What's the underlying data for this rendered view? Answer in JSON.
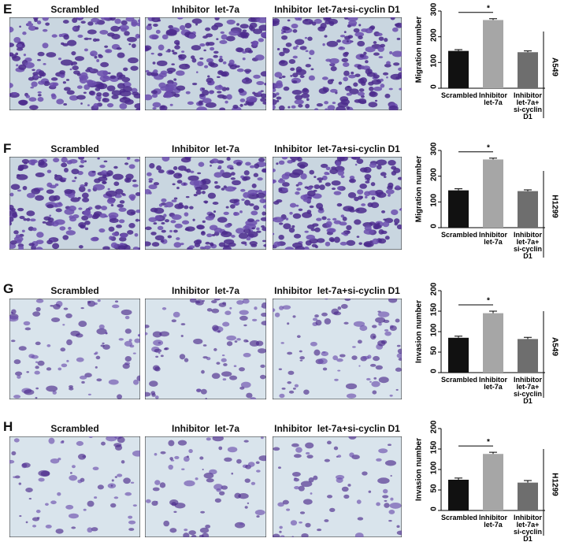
{
  "panels": [
    {
      "letter": "E",
      "image_labels": [
        "Scrambled",
        "Inhibitor  let-7a",
        "Inhibitor  let-7a+si-cyclin D1"
      ],
      "cell_line": "A549"
    },
    {
      "letter": "F",
      "image_labels": [
        "Scrambled",
        "Inhibitor  let-7a",
        "Inhibitor  let-7a+si-cyclin D1"
      ],
      "cell_line": "H1299"
    },
    {
      "letter": "G",
      "image_labels": [
        "Scrambled",
        "Inhibitor  let-7a",
        "Inhibitor  let-7a+si-cyclin D1"
      ],
      "cell_line": "A549"
    },
    {
      "letter": "H",
      "image_labels": [
        "Scrambled",
        "Inhibitor  let-7a",
        "Inhibitor  let-7a+si-cyclin D1"
      ],
      "cell_line": "H1299"
    }
  ],
  "chart_data": [
    {
      "type": "bar",
      "y_label": "Migration number",
      "categories": [
        "Scrambled",
        "Inhibitor\nlet-7a",
        "Inhibitor\nlet-7a+\nsi-cyclin D1"
      ],
      "values": [
        145,
        265,
        140
      ],
      "errors": [
        5,
        5,
        5
      ],
      "colors": [
        "#111111",
        "#a6a6a6",
        "#6e6e6e"
      ],
      "ylim": [
        0,
        300
      ],
      "yticks": [
        0,
        100,
        200,
        300
      ],
      "annotation": "*"
    },
    {
      "type": "bar",
      "y_label": "Migration number",
      "categories": [
        "Scrambled",
        "Inhibitor\nlet-7a",
        "Inhibitor\nlet-7a+\nsi-cyclin D1"
      ],
      "values": [
        145,
        265,
        142
      ],
      "errors": [
        6,
        5,
        5
      ],
      "colors": [
        "#111111",
        "#a6a6a6",
        "#6e6e6e"
      ],
      "ylim": [
        0,
        300
      ],
      "yticks": [
        0,
        100,
        200,
        300
      ],
      "annotation": "*"
    },
    {
      "type": "bar",
      "y_label": "Invasion number",
      "categories": [
        "Scrambled",
        "Inhibitor\nlet-7a",
        "Inhibitor\nlet-7a+\nsi-cyclin D1"
      ],
      "values": [
        85,
        145,
        82
      ],
      "errors": [
        4,
        5,
        4
      ],
      "colors": [
        "#111111",
        "#a6a6a6",
        "#6e6e6e"
      ],
      "ylim": [
        0,
        200
      ],
      "yticks": [
        0,
        50,
        100,
        150,
        200
      ],
      "annotation": "*"
    },
    {
      "type": "bar",
      "y_label": "Invasion number",
      "categories": [
        "Scrambled",
        "Inhibitor\nlet-7a",
        "Inhibitor\nlet-7a+\nsi-cyclin D1"
      ],
      "values": [
        75,
        138,
        68
      ],
      "errors": [
        4,
        4,
        5
      ],
      "colors": [
        "#111111",
        "#a6a6a6",
        "#6e6e6e"
      ],
      "ylim": [
        0,
        200
      ],
      "yticks": [
        0,
        50,
        100,
        150,
        200
      ],
      "annotation": "*"
    }
  ]
}
